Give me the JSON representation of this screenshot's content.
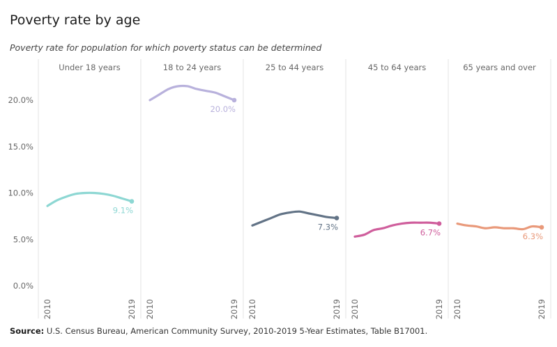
{
  "title": "Poverty rate by age",
  "subtitle": "Poverty rate for population for which poverty status can be determined",
  "source": {
    "label": "Source:",
    "text": " U.S. Census Bureau, American Community Survey, 2010-2019 5-Year Estimates, Table B17001."
  },
  "chart_data": {
    "type": "line",
    "x": [
      2010,
      2011,
      2012,
      2013,
      2014,
      2015,
      2016,
      2017,
      2018,
      2019
    ],
    "x_tick_labels": [
      "2010",
      "2019"
    ],
    "y_ticks": [
      0,
      5,
      10,
      15,
      20
    ],
    "y_tick_labels": [
      "0.0%",
      "5.0%",
      "10.0%",
      "15.0%",
      "20.0%"
    ],
    "ylim": [
      0,
      24
    ],
    "grid": false,
    "panels": [
      {
        "name": "Under 18 years",
        "color": "#8dd7d3",
        "values": [
          8.6,
          9.2,
          9.6,
          9.9,
          10.0,
          10.0,
          9.9,
          9.7,
          9.4,
          9.1
        ],
        "end_label": "9.1%"
      },
      {
        "name": "18 to 24 years",
        "color": "#b8b1dc",
        "values": [
          20.0,
          20.6,
          21.2,
          21.5,
          21.5,
          21.2,
          21.0,
          20.8,
          20.4,
          20.0
        ],
        "end_label": "20.0%"
      },
      {
        "name": "25 to 44 years",
        "color": "#627386",
        "values": [
          6.5,
          6.9,
          7.3,
          7.7,
          7.9,
          8.0,
          7.8,
          7.6,
          7.4,
          7.3
        ],
        "end_label": "7.3%"
      },
      {
        "name": "45 to 64 years",
        "color": "#cf5e9c",
        "values": [
          5.3,
          5.5,
          6.0,
          6.2,
          6.5,
          6.7,
          6.8,
          6.8,
          6.8,
          6.7
        ],
        "end_label": "6.7%"
      },
      {
        "name": "65 years and over",
        "color": "#e9997a",
        "values": [
          6.7,
          6.5,
          6.4,
          6.2,
          6.3,
          6.2,
          6.2,
          6.1,
          6.4,
          6.3
        ],
        "end_label": "6.3%"
      }
    ]
  }
}
